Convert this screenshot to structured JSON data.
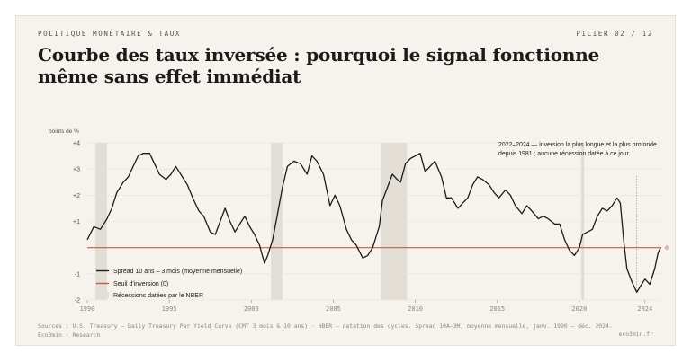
{
  "header": {
    "kicker": "POLITIQUE MONÉTAIRE & TAUX",
    "pager": "PILIER 02 / 12",
    "title": "Courbe des taux inversée : pourquoi le signal fonctionne même sans effet immédiat"
  },
  "chart_data": {
    "type": "line",
    "ylabel": "points de %",
    "ylim": [
      -2,
      4
    ],
    "xlim": [
      1990,
      2025
    ],
    "y_ticks": [
      "+4",
      "+3",
      "+2",
      "+1",
      "0",
      "-1",
      "-2"
    ],
    "x_ticks": [
      "1990",
      "1995",
      "2000",
      "2005",
      "2010",
      "2015",
      "2020",
      "2024"
    ],
    "series": [
      {
        "name": "Spread 10 ans – 3 mois (moyenne mensuelle)",
        "color": "#1d1b18",
        "points": [
          [
            1990.0,
            0.3
          ],
          [
            1990.4,
            0.8
          ],
          [
            1990.8,
            0.7
          ],
          [
            1991.2,
            1.1
          ],
          [
            1991.5,
            1.5
          ],
          [
            1991.8,
            2.1
          ],
          [
            1992.2,
            2.5
          ],
          [
            1992.5,
            2.7
          ],
          [
            1992.8,
            3.1
          ],
          [
            1993.1,
            3.5
          ],
          [
            1993.4,
            3.6
          ],
          [
            1993.8,
            3.6
          ],
          [
            1994.1,
            3.2
          ],
          [
            1994.4,
            2.8
          ],
          [
            1994.8,
            2.6
          ],
          [
            1995.1,
            2.8
          ],
          [
            1995.4,
            3.1
          ],
          [
            1995.8,
            2.7
          ],
          [
            1996.1,
            2.4
          ],
          [
            1996.5,
            1.8
          ],
          [
            1996.8,
            1.4
          ],
          [
            1997.1,
            1.2
          ],
          [
            1997.5,
            0.6
          ],
          [
            1997.8,
            0.5
          ],
          [
            1998.1,
            1.0
          ],
          [
            1998.4,
            1.5
          ],
          [
            1998.7,
            1.0
          ],
          [
            1999.0,
            0.6
          ],
          [
            1999.3,
            0.9
          ],
          [
            1999.6,
            1.2
          ],
          [
            1999.9,
            0.8
          ],
          [
            2000.2,
            0.5
          ],
          [
            2000.5,
            0.1
          ],
          [
            2000.8,
            -0.6
          ],
          [
            2001.0,
            -0.3
          ],
          [
            2001.3,
            0.3
          ],
          [
            2001.6,
            1.3
          ],
          [
            2001.9,
            2.3
          ],
          [
            2002.2,
            3.1
          ],
          [
            2002.6,
            3.3
          ],
          [
            2003.0,
            3.2
          ],
          [
            2003.4,
            2.8
          ],
          [
            2003.7,
            3.5
          ],
          [
            2004.0,
            3.3
          ],
          [
            2004.4,
            2.8
          ],
          [
            2004.8,
            1.6
          ],
          [
            2005.1,
            2.0
          ],
          [
            2005.4,
            1.6
          ],
          [
            2005.8,
            0.7
          ],
          [
            2006.1,
            0.3
          ],
          [
            2006.4,
            0.1
          ],
          [
            2006.8,
            -0.4
          ],
          [
            2007.1,
            -0.3
          ],
          [
            2007.4,
            0.0
          ],
          [
            2007.8,
            0.8
          ],
          [
            2008.0,
            1.8
          ],
          [
            2008.3,
            2.3
          ],
          [
            2008.6,
            2.8
          ],
          [
            2008.9,
            2.6
          ],
          [
            2009.1,
            2.5
          ],
          [
            2009.4,
            3.2
          ],
          [
            2009.7,
            3.4
          ],
          [
            2010.0,
            3.5
          ],
          [
            2010.3,
            3.6
          ],
          [
            2010.6,
            2.9
          ],
          [
            2010.9,
            3.1
          ],
          [
            2011.2,
            3.3
          ],
          [
            2011.6,
            2.7
          ],
          [
            2011.9,
            1.9
          ],
          [
            2012.2,
            1.9
          ],
          [
            2012.6,
            1.5
          ],
          [
            2012.9,
            1.7
          ],
          [
            2013.2,
            1.9
          ],
          [
            2013.5,
            2.4
          ],
          [
            2013.8,
            2.7
          ],
          [
            2014.1,
            2.6
          ],
          [
            2014.5,
            2.4
          ],
          [
            2014.8,
            2.1
          ],
          [
            2015.1,
            1.9
          ],
          [
            2015.5,
            2.2
          ],
          [
            2015.8,
            2.0
          ],
          [
            2016.1,
            1.6
          ],
          [
            2016.5,
            1.3
          ],
          [
            2016.8,
            1.6
          ],
          [
            2017.1,
            1.4
          ],
          [
            2017.5,
            1.1
          ],
          [
            2017.8,
            1.2
          ],
          [
            2018.1,
            1.1
          ],
          [
            2018.5,
            0.9
          ],
          [
            2018.8,
            0.9
          ],
          [
            2019.1,
            0.3
          ],
          [
            2019.4,
            -0.1
          ],
          [
            2019.7,
            -0.3
          ],
          [
            2020.0,
            0.0
          ],
          [
            2020.2,
            0.5
          ],
          [
            2020.5,
            0.6
          ],
          [
            2020.8,
            0.7
          ],
          [
            2021.1,
            1.2
          ],
          [
            2021.4,
            1.5
          ],
          [
            2021.7,
            1.4
          ],
          [
            2022.0,
            1.6
          ],
          [
            2022.3,
            1.9
          ],
          [
            2022.5,
            1.7
          ],
          [
            2022.7,
            0.3
          ],
          [
            2022.9,
            -0.8
          ],
          [
            2023.2,
            -1.3
          ],
          [
            2023.5,
            -1.7
          ],
          [
            2023.8,
            -1.4
          ],
          [
            2024.0,
            -1.2
          ],
          [
            2024.3,
            -1.4
          ],
          [
            2024.6,
            -0.8
          ],
          [
            2024.8,
            -0.2
          ],
          [
            2024.95,
            0.0
          ]
        ]
      },
      {
        "name": "Seuil d'inversion (0)",
        "color": "#c0603c",
        "value": 0
      }
    ],
    "recessions": {
      "name": "Récessions datées par le NBER",
      "color": "#e2ded6",
      "ranges": [
        [
          1990.5,
          1991.2
        ],
        [
          2001.2,
          2001.9
        ],
        [
          2007.9,
          2009.5
        ],
        [
          2020.1,
          2020.3
        ]
      ]
    },
    "zero_label": "0",
    "annotation": "2022–2024 — inversion la plus longue et la plus profonde depuis 1981 ; aucune récession datée à ce jour."
  },
  "footer": {
    "sources": "Sources : U.S. Treasury — Daily Treasury Par Yield Curve (CMT 3 mois & 10 ans) · NBER — datation des cycles. Spread 10A–3M, moyenne mensuelle, janv. 1990 – déc. 2024.",
    "publisher": "Eco3min · Research",
    "site": "eco3min.fr"
  }
}
